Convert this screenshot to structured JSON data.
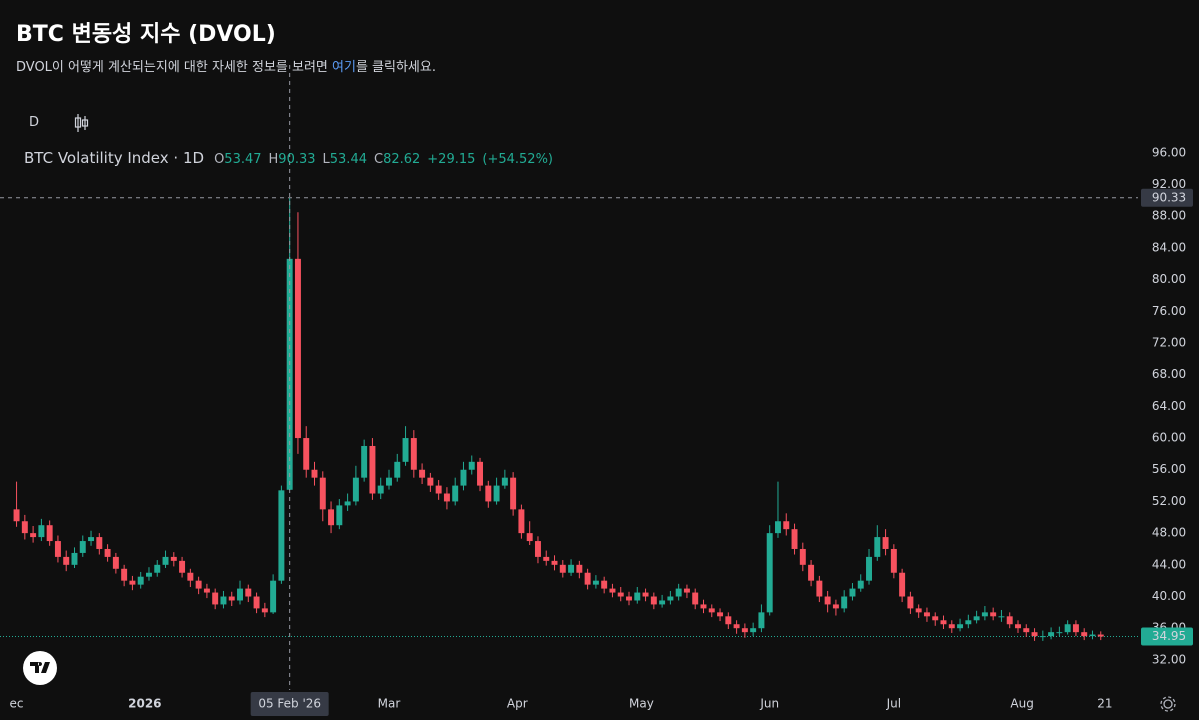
{
  "header": {
    "title": "BTC 변동성 지수 (DVOL)",
    "desc_before": "DVOL이 어떻게 계산되는지에 대한 자세한 정보를 보려면 ",
    "desc_link": "여기",
    "desc_after": "를 클릭하세요."
  },
  "toolbar": {
    "interval": "D"
  },
  "chart_data": {
    "type": "candlestick",
    "symbol": "BTC Volatility Index · 1D",
    "ohlc_legend": [
      {
        "label": "O",
        "value": 53.47
      },
      {
        "label": "H",
        "value": 90.33
      },
      {
        "label": "L",
        "value": 53.44
      },
      {
        "label": "C",
        "value": 82.62
      }
    ],
    "change": {
      "value": 29.15,
      "label": "+29.15"
    },
    "change_pct": {
      "value": 54.52,
      "label": "(+54.52%)"
    },
    "up_color": "#22ab94",
    "down_color": "#f7525f",
    "x": [
      0,
      2,
      4,
      6,
      8,
      10,
      12,
      14,
      16,
      18,
      20,
      22,
      24,
      26,
      28,
      30,
      32,
      34,
      36,
      38,
      40,
      42,
      44,
      46,
      48,
      50,
      52,
      54,
      56,
      58,
      60,
      62,
      64,
      66,
      68,
      70,
      72,
      74,
      76,
      78,
      80,
      82,
      84,
      86,
      88,
      90,
      92,
      94,
      96,
      98,
      100,
      102,
      104,
      106,
      108,
      110,
      112,
      114,
      116,
      118,
      120,
      122,
      124,
      126,
      128,
      130,
      132,
      134,
      136,
      138,
      140,
      142,
      144,
      146,
      148,
      150,
      152,
      154,
      156,
      158,
      160,
      162,
      164,
      166,
      168,
      170,
      172,
      174,
      176,
      178,
      180,
      182,
      184,
      186,
      188,
      190,
      192,
      194,
      196,
      198,
      200,
      202,
      204,
      206,
      208,
      210,
      212,
      214,
      216,
      218,
      220,
      222,
      224,
      226,
      228,
      230,
      232,
      234,
      236,
      238,
      240,
      242,
      244,
      246,
      248,
      250,
      252,
      254,
      256,
      258,
      260,
      262
    ],
    "ohlc": [
      [
        51,
        54.5,
        48.8,
        49.5
      ],
      [
        49.5,
        50.3,
        47.2,
        48
      ],
      [
        48,
        48.9,
        46.8,
        47.5
      ],
      [
        47.5,
        49.8,
        47,
        49
      ],
      [
        49,
        49.6,
        46.4,
        47
      ],
      [
        47,
        47.7,
        44.3,
        45
      ],
      [
        45,
        45.8,
        43.2,
        44
      ],
      [
        44,
        46.2,
        43.6,
        45.5
      ],
      [
        45.5,
        47.7,
        45,
        47
      ],
      [
        47,
        48.3,
        46.4,
        47.5
      ],
      [
        47.5,
        48,
        45.3,
        46
      ],
      [
        46,
        46.6,
        44.4,
        45
      ],
      [
        45,
        45.5,
        42.9,
        43.5
      ],
      [
        43.5,
        44,
        41.3,
        42
      ],
      [
        42,
        42.6,
        40.8,
        41.5
      ],
      [
        41.5,
        43.1,
        41,
        42.5
      ],
      [
        42.5,
        43.7,
        42,
        43
      ],
      [
        43,
        44.6,
        42.5,
        44
      ],
      [
        44,
        45.8,
        43.6,
        45
      ],
      [
        45,
        45.6,
        43.8,
        44.5
      ],
      [
        44.5,
        45,
        42.4,
        43
      ],
      [
        43,
        43.5,
        41.2,
        42
      ],
      [
        42,
        42.5,
        40.3,
        41
      ],
      [
        41,
        41.6,
        39.8,
        40.5
      ],
      [
        40.5,
        41,
        38.4,
        39
      ],
      [
        39,
        40.7,
        38.5,
        40
      ],
      [
        40,
        40.6,
        38.8,
        39.5
      ],
      [
        39.5,
        42,
        39,
        41
      ],
      [
        41,
        41.5,
        39.3,
        40
      ],
      [
        40,
        40.5,
        37.9,
        38.5
      ],
      [
        38.5,
        39.2,
        37.4,
        38
      ],
      [
        38,
        42.8,
        37.8,
        42
      ],
      [
        42,
        54,
        41.6,
        53.4
      ],
      [
        53.47,
        90.33,
        53.44,
        82.62
      ],
      [
        82.62,
        88.5,
        58,
        60
      ],
      [
        60,
        61.5,
        55,
        56
      ],
      [
        56,
        57,
        54,
        55
      ],
      [
        55,
        55.8,
        49.5,
        51
      ],
      [
        51,
        52,
        48,
        49
      ],
      [
        49,
        52.3,
        48.5,
        51.5
      ],
      [
        51.5,
        53,
        50.8,
        52
      ],
      [
        52,
        56.5,
        51.5,
        55
      ],
      [
        55,
        59.8,
        54.5,
        59
      ],
      [
        59,
        60,
        52.2,
        53
      ],
      [
        53,
        55,
        52.3,
        54
      ],
      [
        54,
        56,
        53.5,
        55
      ],
      [
        55,
        58,
        54.5,
        57
      ],
      [
        57,
        61.5,
        56.5,
        60
      ],
      [
        60,
        61,
        55,
        56
      ],
      [
        56,
        56.8,
        54.2,
        55
      ],
      [
        55,
        55.6,
        53.2,
        54
      ],
      [
        54,
        54.7,
        52.2,
        53
      ],
      [
        53,
        53.8,
        51,
        52
      ],
      [
        52,
        55,
        51.5,
        54
      ],
      [
        54,
        57,
        53.4,
        56
      ],
      [
        56,
        57.8,
        55.4,
        57
      ],
      [
        57,
        57.5,
        53.3,
        54
      ],
      [
        54,
        54.6,
        51.2,
        52
      ],
      [
        52,
        55,
        51.6,
        54
      ],
      [
        54,
        56,
        53.6,
        55
      ],
      [
        55,
        55.7,
        50.2,
        51
      ],
      [
        51,
        51.6,
        47.3,
        48
      ],
      [
        48,
        49.5,
        46.5,
        47
      ],
      [
        47,
        47.6,
        44.2,
        45
      ],
      [
        45,
        45.8,
        43.9,
        44.5
      ],
      [
        44.5,
        45.2,
        43.3,
        44
      ],
      [
        44,
        44.6,
        42.4,
        43
      ],
      [
        43,
        44.7,
        42.6,
        44
      ],
      [
        44,
        44.5,
        42.3,
        43
      ],
      [
        43,
        43.5,
        40.9,
        41.5
      ],
      [
        41.5,
        42.7,
        41,
        42
      ],
      [
        42,
        42.5,
        40.4,
        41
      ],
      [
        41,
        41.6,
        39.9,
        40.5
      ],
      [
        40.5,
        41.2,
        39.4,
        40
      ],
      [
        40,
        40.6,
        38.9,
        39.5
      ],
      [
        39.5,
        41.2,
        39.1,
        40.5
      ],
      [
        40.5,
        41,
        39.4,
        40
      ],
      [
        40,
        40.5,
        38.4,
        39
      ],
      [
        39,
        40.2,
        38.6,
        39.5
      ],
      [
        39.5,
        40.7,
        39,
        40
      ],
      [
        40,
        41.6,
        39.5,
        41
      ],
      [
        41,
        41.5,
        39.8,
        40.5
      ],
      [
        40.5,
        41,
        38.4,
        39
      ],
      [
        39,
        39.6,
        37.9,
        38.5
      ],
      [
        38.5,
        39,
        37.4,
        38
      ],
      [
        38,
        38.5,
        36.9,
        37.5
      ],
      [
        37.5,
        38,
        35.9,
        36.5
      ],
      [
        36.5,
        37,
        35.3,
        36
      ],
      [
        36,
        36.6,
        34.8,
        35.5
      ],
      [
        35.5,
        36.7,
        35,
        36
      ],
      [
        36,
        39,
        35.5,
        38
      ],
      [
        38,
        49,
        37.6,
        48
      ],
      [
        48,
        54.5,
        47.4,
        49.5
      ],
      [
        49.5,
        50.5,
        47.7,
        48.5
      ],
      [
        48.5,
        49.2,
        45.3,
        46
      ],
      [
        46,
        46.8,
        43.2,
        44
      ],
      [
        44,
        44.6,
        41.3,
        42
      ],
      [
        42,
        42.6,
        39.3,
        40
      ],
      [
        40,
        40.7,
        38,
        39
      ],
      [
        39,
        39.6,
        37.6,
        38.5
      ],
      [
        38.5,
        40.8,
        38,
        40
      ],
      [
        40,
        41.7,
        39.5,
        41
      ],
      [
        41,
        42.8,
        40.6,
        42
      ],
      [
        42,
        46,
        41.5,
        45
      ],
      [
        45,
        49,
        44.5,
        47.5
      ],
      [
        47.5,
        48.5,
        45.2,
        46
      ],
      [
        46,
        46.6,
        42.3,
        43
      ],
      [
        43,
        43.5,
        39.3,
        40
      ],
      [
        40,
        40.6,
        37.8,
        38.5
      ],
      [
        38.5,
        39,
        37.3,
        38
      ],
      [
        38,
        38.6,
        36.8,
        37.5
      ],
      [
        37.5,
        38,
        36.3,
        37
      ],
      [
        37,
        37.6,
        35.9,
        36.5
      ],
      [
        36.5,
        37,
        35.4,
        36
      ],
      [
        36,
        37.2,
        35.6,
        36.5
      ],
      [
        36.5,
        37.7,
        36,
        37
      ],
      [
        37,
        38.2,
        36.6,
        37.5
      ],
      [
        37.5,
        38.8,
        37,
        38
      ],
      [
        38,
        38.6,
        37,
        37.5
      ],
      [
        37.5,
        38.3,
        36.8,
        37.5
      ],
      [
        37.5,
        38,
        36,
        36.5
      ],
      [
        36.5,
        37,
        35.4,
        36
      ],
      [
        36,
        36.5,
        34.9,
        35.5
      ],
      [
        35.5,
        36,
        34.4,
        35
      ],
      [
        35,
        35.7,
        34.4,
        35
      ],
      [
        35,
        36.1,
        34.6,
        35.5
      ],
      [
        35.5,
        36.2,
        35,
        35.5
      ],
      [
        35.5,
        37,
        35.2,
        36.5
      ],
      [
        36.5,
        37,
        35,
        35.5
      ],
      [
        35.5,
        36,
        34.5,
        35
      ],
      [
        35,
        35.7,
        34.6,
        35.2
      ],
      [
        35.2,
        35.6,
        34.5,
        34.95
      ]
    ],
    "xlim": [
      -4,
      271
    ],
    "ylim": [
      28.2,
      103.3
    ],
    "yticks": [
      {
        "value": 32,
        "label": "32.00"
      },
      {
        "value": 36,
        "label": "36.00"
      },
      {
        "value": 40,
        "label": "40.00"
      },
      {
        "value": 44,
        "label": "44.00"
      },
      {
        "value": 48,
        "label": "48.00"
      },
      {
        "value": 52,
        "label": "52.00"
      },
      {
        "value": 56,
        "label": "56.00"
      },
      {
        "value": 60,
        "label": "60.00"
      },
      {
        "value": 64,
        "label": "64.00"
      },
      {
        "value": 68,
        "label": "68.00"
      },
      {
        "value": 72,
        "label": "72.00"
      },
      {
        "value": 76,
        "label": "76.00"
      },
      {
        "value": 80,
        "label": "80.00"
      },
      {
        "value": 84,
        "label": "84.00"
      },
      {
        "value": 88,
        "label": "88.00"
      },
      {
        "value": 92,
        "label": "92.00"
      },
      {
        "value": 96,
        "label": "96.00"
      }
    ],
    "xticks": [
      {
        "value": 0,
        "label": "ec"
      },
      {
        "value": 31,
        "label": "2026"
      },
      {
        "value": 90,
        "label": "Mar"
      },
      {
        "value": 121,
        "label": "Apr"
      },
      {
        "value": 151,
        "label": "May"
      },
      {
        "value": 182,
        "label": "Jun"
      },
      {
        "value": 212,
        "label": "Jul"
      },
      {
        "value": 243,
        "label": "Aug"
      },
      {
        "value": 263,
        "label": "21"
      }
    ],
    "crosshair": {
      "x": 66,
      "x_label": "05 Feb '26",
      "y": 90.33
    },
    "last_price": 34.95
  }
}
